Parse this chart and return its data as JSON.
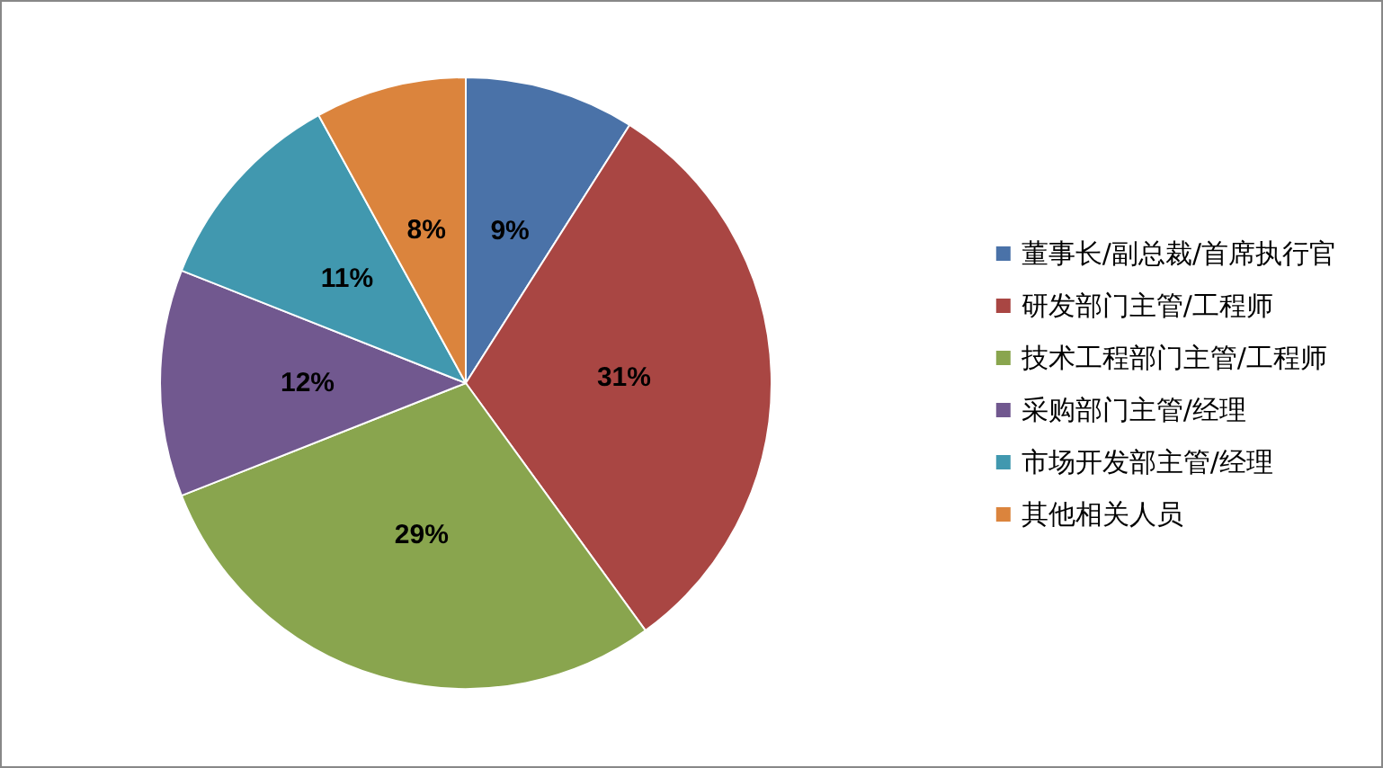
{
  "chart_data": {
    "type": "pie",
    "categories": [
      "董事长/副总裁/首席执行官",
      "研发部门主管/工程师",
      "技术工程部门主管/工程师",
      "采购部门主管/经理",
      "市场开发部主管/经理",
      "其他相关人员"
    ],
    "values": [
      9,
      31,
      29,
      12,
      11,
      8
    ],
    "colors": [
      "#4a72a8",
      "#a94643",
      "#89a54e",
      "#71588f",
      "#4198af",
      "#db843d"
    ],
    "value_labels": [
      "9%",
      "31%",
      "29%",
      "12%",
      "11%",
      "8%"
    ],
    "legend": "right"
  }
}
